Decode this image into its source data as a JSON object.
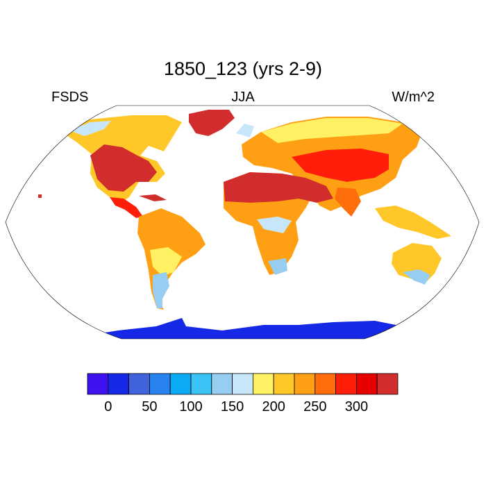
{
  "title": "1850_123 (yrs 2-9)",
  "left_label": "FSDS",
  "center_label": "JJA",
  "right_label": "W/m^2",
  "colorbar": {
    "colors": [
      "#3e12f0",
      "#1428e6",
      "#4164dc",
      "#2882f0",
      "#0aaaf5",
      "#3cc3f5",
      "#96cdf0",
      "#c8e6fa",
      "#fff064",
      "#ffc828",
      "#ffa014",
      "#ff6e0a",
      "#ff1e0a",
      "#e60000",
      "#d22d2d"
    ],
    "tick_labels": [
      "0",
      "50",
      "100",
      "150",
      "200",
      "250",
      "300"
    ]
  },
  "map": {
    "projection": "robinson",
    "field_colors": {
      "antarctica": "#1428e6",
      "high_lat": "#96cdf0",
      "cool": "#c8e6fa",
      "mild": "#fff064",
      "warm": "#ffc828",
      "warmer": "#ffa014",
      "hot": "#ff6e0a",
      "very_hot": "#ff1e0a",
      "hottest": "#d22d2d"
    }
  }
}
